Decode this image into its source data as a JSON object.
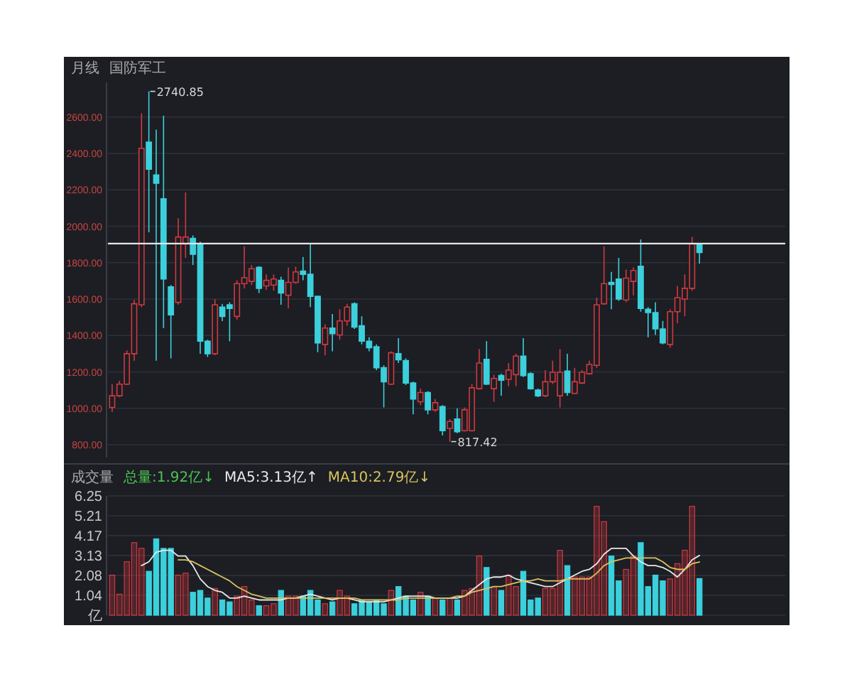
{
  "chart_data": [
    {
      "type": "candlestick",
      "title": "月线",
      "subtitle": "国防军工",
      "tick_labels": "y",
      "grid": "y",
      "categories": [
        null,
        null,
        null,
        null,
        null,
        null,
        null,
        null,
        null,
        null,
        null,
        null,
        null,
        null,
        null,
        null,
        null,
        null,
        null,
        null,
        null,
        null,
        null,
        null,
        null,
        null,
        null,
        null,
        null,
        null,
        null,
        null,
        null,
        null,
        null,
        null,
        null,
        null,
        null,
        null,
        null,
        null,
        null,
        null,
        null,
        null,
        null,
        null,
        null,
        null,
        null,
        null,
        null,
        null,
        null,
        null,
        null,
        null,
        null,
        null,
        null,
        null,
        null,
        null,
        null,
        null,
        null,
        null,
        null,
        null,
        null,
        null,
        null,
        null,
        null,
        null,
        null,
        null,
        null,
        null,
        null
      ],
      "ohlc": [
        [
          1005,
          1133,
          980,
          1069
        ],
        [
          1069,
          1151,
          1062,
          1133
        ],
        [
          1133,
          1318,
          1128,
          1300
        ],
        [
          1300,
          1595,
          1262,
          1574
        ],
        [
          1569,
          2620,
          1556,
          2428
        ],
        [
          2462,
          2740.85,
          1967,
          2313
        ],
        [
          2282,
          2531,
          1262,
          2236
        ],
        [
          2151,
          2608,
          1441,
          1710
        ],
        [
          1667,
          1677,
          1274,
          1513
        ],
        [
          1582,
          2044,
          1569,
          1941
        ],
        [
          1903,
          2185,
          1826,
          1941
        ],
        [
          1933,
          1949,
          1787,
          1846
        ],
        [
          1903,
          1915,
          1300,
          1369
        ],
        [
          1369,
          1377,
          1282,
          1300
        ],
        [
          1300,
          1600,
          1292,
          1569
        ],
        [
          1556,
          1574,
          1479,
          1505
        ],
        [
          1569,
          1582,
          1369,
          1549
        ],
        [
          1505,
          1703,
          1487,
          1685
        ],
        [
          1685,
          1890,
          1659,
          1718
        ],
        [
          1697,
          1787,
          1677,
          1767
        ],
        [
          1774,
          1780,
          1633,
          1659
        ],
        [
          1672,
          1736,
          1651,
          1703
        ],
        [
          1677,
          1736,
          1646,
          1710
        ],
        [
          1703,
          1723,
          1569,
          1633
        ],
        [
          1621,
          1774,
          1549,
          1692
        ],
        [
          1692,
          1779,
          1685,
          1749
        ],
        [
          1754,
          1831,
          1703,
          1736
        ],
        [
          1736,
          1908,
          1556,
          1615
        ],
        [
          1615,
          1615,
          1308,
          1359
        ],
        [
          1351,
          1462,
          1292,
          1441
        ],
        [
          1441,
          1518,
          1313,
          1410
        ],
        [
          1403,
          1544,
          1377,
          1480
        ],
        [
          1480,
          1574,
          1454,
          1556
        ],
        [
          1574,
          1582,
          1436,
          1446
        ],
        [
          1454,
          1505,
          1351,
          1369
        ],
        [
          1369,
          1390,
          1313,
          1333
        ],
        [
          1338,
          1351,
          1210,
          1223
        ],
        [
          1223,
          1236,
          1005,
          1146
        ],
        [
          1133,
          1313,
          1128,
          1305
        ],
        [
          1300,
          1385,
          1249,
          1267
        ],
        [
          1262,
          1274,
          1128,
          1139
        ],
        [
          1139,
          1146,
          967,
          1051
        ],
        [
          1036,
          1108,
          1018,
          1087
        ],
        [
          1087,
          1095,
          967,
          992
        ],
        [
          992,
          1051,
          980,
          1031
        ],
        [
          1010,
          1018,
          851,
          877
        ],
        [
          890,
          941,
          817.42,
          928
        ],
        [
          941,
          1000,
          864,
          872
        ],
        [
          877,
          1005,
          872,
          992
        ],
        [
          877,
          1133,
          872,
          1113
        ],
        [
          1108,
          1326,
          1103,
          1249
        ],
        [
          1269,
          1369,
          1128,
          1133
        ],
        [
          1108,
          1185,
          1036,
          1164
        ],
        [
          1180,
          1190,
          1069,
          1154
        ],
        [
          1159,
          1249,
          1121,
          1210
        ],
        [
          1185,
          1300,
          1121,
          1287
        ],
        [
          1287,
          1385,
          1172,
          1180
        ],
        [
          1190,
          1198,
          1103,
          1108
        ],
        [
          1100,
          1108,
          1062,
          1069
        ],
        [
          1069,
          1210,
          1062,
          1146
        ],
        [
          1146,
          1262,
          1133,
          1198
        ],
        [
          1069,
          1326,
          1005,
          1198
        ],
        [
          1205,
          1300,
          1069,
          1087
        ],
        [
          1082,
          1223,
          1077,
          1146
        ],
        [
          1139,
          1210,
          1133,
          1198
        ],
        [
          1190,
          1262,
          1185,
          1241
        ],
        [
          1236,
          1608,
          1223,
          1569
        ],
        [
          1574,
          1890,
          1569,
          1685
        ],
        [
          1692,
          1749,
          1544,
          1680
        ],
        [
          1710,
          1826,
          1590,
          1600
        ],
        [
          1595,
          1762,
          1582,
          1715
        ],
        [
          1697,
          1774,
          1621,
          1757
        ],
        [
          1780,
          1928,
          1531,
          1549
        ],
        [
          1544,
          1556,
          1390,
          1526
        ],
        [
          1526,
          1582,
          1403,
          1436
        ],
        [
          1436,
          1480,
          1351,
          1359
        ],
        [
          1351,
          1544,
          1333,
          1531
        ],
        [
          1531,
          1672,
          1467,
          1608
        ],
        [
          1600,
          1736,
          1505,
          1659
        ],
        [
          1659,
          1941,
          1646,
          1903
        ],
        [
          1897,
          1908,
          1795,
          1856
        ]
      ],
      "colors": [
        "#d0393f",
        "#d0393f",
        "#d0393f",
        "#d0393f",
        "#d0393f",
        "#3bd0dc",
        "#3bd0dc",
        "#3bd0dc",
        "#3bd0dc",
        "#d0393f",
        "#d0393f",
        "#3bd0dc",
        "#3bd0dc",
        "#3bd0dc",
        "#d0393f",
        "#3bd0dc",
        "#3bd0dc",
        "#d0393f",
        "#d0393f",
        "#d0393f",
        "#3bd0dc",
        "#d0393f",
        "#d0393f",
        "#3bd0dc",
        "#d0393f",
        "#d0393f",
        "#3bd0dc",
        "#3bd0dc",
        "#3bd0dc",
        "#d0393f",
        "#3bd0dc",
        "#d0393f",
        "#d0393f",
        "#3bd0dc",
        "#3bd0dc",
        "#3bd0dc",
        "#3bd0dc",
        "#3bd0dc",
        "#d0393f",
        "#3bd0dc",
        "#3bd0dc",
        "#3bd0dc",
        "#d0393f",
        "#3bd0dc",
        "#d0393f",
        "#3bd0dc",
        "#d0393f",
        "#3bd0dc",
        "#d0393f",
        "#d0393f",
        "#d0393f",
        "#3bd0dc",
        "#d0393f",
        "#3bd0dc",
        "#d0393f",
        "#d0393f",
        "#3bd0dc",
        "#3bd0dc",
        "#3bd0dc",
        "#d0393f",
        "#d0393f",
        "#d0393f",
        "#3bd0dc",
        "#d0393f",
        "#d0393f",
        "#d0393f",
        "#d0393f",
        "#d0393f",
        "#3bd0dc",
        "#3bd0dc",
        "#d0393f",
        "#d0393f",
        "#3bd0dc",
        "#3bd0dc",
        "#3bd0dc",
        "#3bd0dc",
        "#d0393f",
        "#d0393f",
        "#d0393f",
        "#d0393f",
        "#3bd0dc"
      ],
      "ylim": [
        730,
        2790
      ],
      "yticks": [
        {
          "value": 800,
          "label": "800.00"
        },
        {
          "value": 1000,
          "label": "1000.00"
        },
        {
          "value": 1200,
          "label": "1200.00"
        },
        {
          "value": 1400,
          "label": "1400.00"
        },
        {
          "value": 1600,
          "label": "1600.00"
        },
        {
          "value": 1800,
          "label": "1800.00"
        },
        {
          "value": 2000,
          "label": "2000.00"
        },
        {
          "value": 2200,
          "label": "2200.00"
        },
        {
          "value": 2400,
          "label": "2400.00"
        },
        {
          "value": 2600,
          "label": "2600.00"
        }
      ],
      "ref_lines": [
        {
          "axis": "y",
          "value": 1905,
          "color": "#e6e6e6"
        }
      ],
      "annotations": [
        "2740.85",
        "817.42"
      ]
    },
    {
      "type": "bar",
      "title": "成交量",
      "tick_labels": "y",
      "grid": "y",
      "legend": "top left",
      "annotations": [
        "总量:1.92亿↓"
      ],
      "categories": [
        null,
        null,
        null,
        null,
        null,
        null,
        null,
        null,
        null,
        null,
        null,
        null,
        null,
        null,
        null,
        null,
        null,
        null,
        null,
        null,
        null,
        null,
        null,
        null,
        null,
        null,
        null,
        null,
        null,
        null,
        null,
        null,
        null,
        null,
        null,
        null,
        null,
        null,
        null,
        null,
        null,
        null,
        null,
        null,
        null,
        null,
        null,
        null,
        null,
        null,
        null,
        null,
        null,
        null,
        null,
        null,
        null,
        null,
        null,
        null,
        null,
        null,
        null,
        null,
        null,
        null,
        null,
        null,
        null,
        null,
        null,
        null,
        null,
        null,
        null,
        null,
        null,
        null,
        null,
        null,
        null
      ],
      "ylim": [
        0,
        6.25
      ],
      "yticks": [
        {
          "value": 0,
          "label": "亿"
        },
        1.04,
        2.08,
        3.13,
        4.17,
        5.21,
        6.25
      ],
      "series": [
        {
          "values": [
            2.1,
            1.1,
            2.8,
            3.8,
            3.5,
            2.3,
            4.0,
            3.5,
            3.5,
            2.1,
            2.2,
            1.2,
            1.3,
            0.9,
            1.4,
            0.8,
            0.7,
            1.0,
            1.5,
            0.8,
            0.5,
            0.5,
            0.6,
            1.3,
            1.0,
            1.0,
            1.0,
            1.3,
            0.8,
            0.6,
            0.7,
            1.3,
            1.0,
            0.6,
            0.8,
            0.7,
            0.8,
            0.6,
            1.3,
            1.5,
            1.0,
            0.8,
            1.2,
            1.0,
            0.9,
            0.8,
            0.9,
            0.8,
            1.3,
            1.4,
            3.1,
            2.5,
            1.5,
            1.3,
            2.1,
            1.5,
            2.3,
            0.8,
            0.9,
            1.4,
            1.4,
            3.4,
            2.6,
            2.0,
            2.0,
            2.0,
            5.7,
            4.9,
            3.1,
            1.8,
            2.4,
            3.1,
            3.8,
            1.5,
            2.1,
            1.8,
            1.9,
            2.7,
            3.4,
            5.7,
            1.92
          ],
          "colors": [
            "#d0393f",
            "#d0393f",
            "#d0393f",
            "#d0393f",
            "#d0393f",
            "#3bd0dc",
            "#3bd0dc",
            "#3bd0dc",
            "#3bd0dc",
            "#d0393f",
            "#d0393f",
            "#3bd0dc",
            "#3bd0dc",
            "#3bd0dc",
            "#d0393f",
            "#3bd0dc",
            "#3bd0dc",
            "#d0393f",
            "#d0393f",
            "#d0393f",
            "#3bd0dc",
            "#d0393f",
            "#d0393f",
            "#3bd0dc",
            "#d0393f",
            "#d0393f",
            "#3bd0dc",
            "#3bd0dc",
            "#3bd0dc",
            "#d0393f",
            "#3bd0dc",
            "#d0393f",
            "#d0393f",
            "#3bd0dc",
            "#3bd0dc",
            "#3bd0dc",
            "#3bd0dc",
            "#3bd0dc",
            "#d0393f",
            "#3bd0dc",
            "#3bd0dc",
            "#3bd0dc",
            "#d0393f",
            "#3bd0dc",
            "#d0393f",
            "#3bd0dc",
            "#d0393f",
            "#3bd0dc",
            "#d0393f",
            "#d0393f",
            "#d0393f",
            "#3bd0dc",
            "#d0393f",
            "#3bd0dc",
            "#d0393f",
            "#d0393f",
            "#3bd0dc",
            "#3bd0dc",
            "#3bd0dc",
            "#d0393f",
            "#d0393f",
            "#d0393f",
            "#3bd0dc",
            "#d0393f",
            "#d0393f",
            "#d0393f",
            "#d0393f",
            "#d0393f",
            "#3bd0dc",
            "#3bd0dc",
            "#d0393f",
            "#d0393f",
            "#3bd0dc",
            "#3bd0dc",
            "#3bd0dc",
            "#3bd0dc",
            "#d0393f",
            "#d0393f",
            "#d0393f",
            "#d0393f",
            "#3bd0dc"
          ]
        },
        {
          "type": "line",
          "name": "MA5:3.13亿↑",
          "color": "#e8e8e8",
          "values": [
            null,
            null,
            null,
            null,
            2.6,
            2.8,
            3.3,
            3.4,
            3.4,
            3.1,
            3.1,
            2.6,
            1.9,
            1.5,
            1.3,
            1.2,
            0.9,
            0.9,
            1.0,
            0.9,
            0.8,
            0.8,
            0.8,
            0.8,
            0.9,
            0.9,
            1.0,
            1.1,
            1.0,
            0.9,
            0.8,
            0.9,
            0.9,
            0.8,
            0.7,
            0.7,
            0.7,
            0.7,
            0.8,
            0.9,
            1.0,
            1.0,
            1.0,
            1.0,
            0.9,
            0.9,
            0.9,
            0.9,
            1.0,
            1.3,
            1.6,
            1.9,
            2.0,
            2.0,
            2.1,
            1.9,
            1.8,
            1.7,
            1.6,
            1.5,
            1.5,
            1.7,
            1.9,
            2.1,
            2.3,
            2.4,
            2.7,
            3.2,
            3.5,
            3.5,
            3.5,
            3.1,
            2.8,
            2.6,
            2.6,
            2.5,
            2.3,
            2.0,
            2.4,
            2.9,
            3.13
          ]
        },
        {
          "type": "line",
          "name": "MA10:2.79亿↓",
          "color": "#d9c25c",
          "values": [
            null,
            null,
            null,
            null,
            null,
            null,
            null,
            null,
            null,
            2.9,
            2.9,
            2.8,
            2.6,
            2.4,
            2.2,
            2.0,
            1.8,
            1.5,
            1.3,
            1.1,
            1.0,
            0.9,
            0.9,
            0.9,
            0.9,
            0.9,
            0.9,
            0.9,
            0.9,
            0.9,
            0.9,
            0.9,
            0.9,
            0.9,
            0.8,
            0.8,
            0.8,
            0.8,
            0.8,
            0.8,
            0.9,
            0.9,
            0.9,
            0.9,
            0.9,
            0.9,
            0.9,
            1.0,
            1.0,
            1.2,
            1.3,
            1.4,
            1.5,
            1.5,
            1.6,
            1.7,
            1.8,
            1.8,
            1.9,
            1.8,
            1.8,
            1.8,
            1.9,
            1.9,
            1.9,
            1.9,
            2.2,
            2.6,
            2.8,
            2.9,
            3.0,
            3.0,
            3.0,
            3.0,
            3.0,
            2.8,
            2.5,
            2.4,
            2.4,
            2.7,
            2.79
          ]
        }
      ]
    }
  ]
}
